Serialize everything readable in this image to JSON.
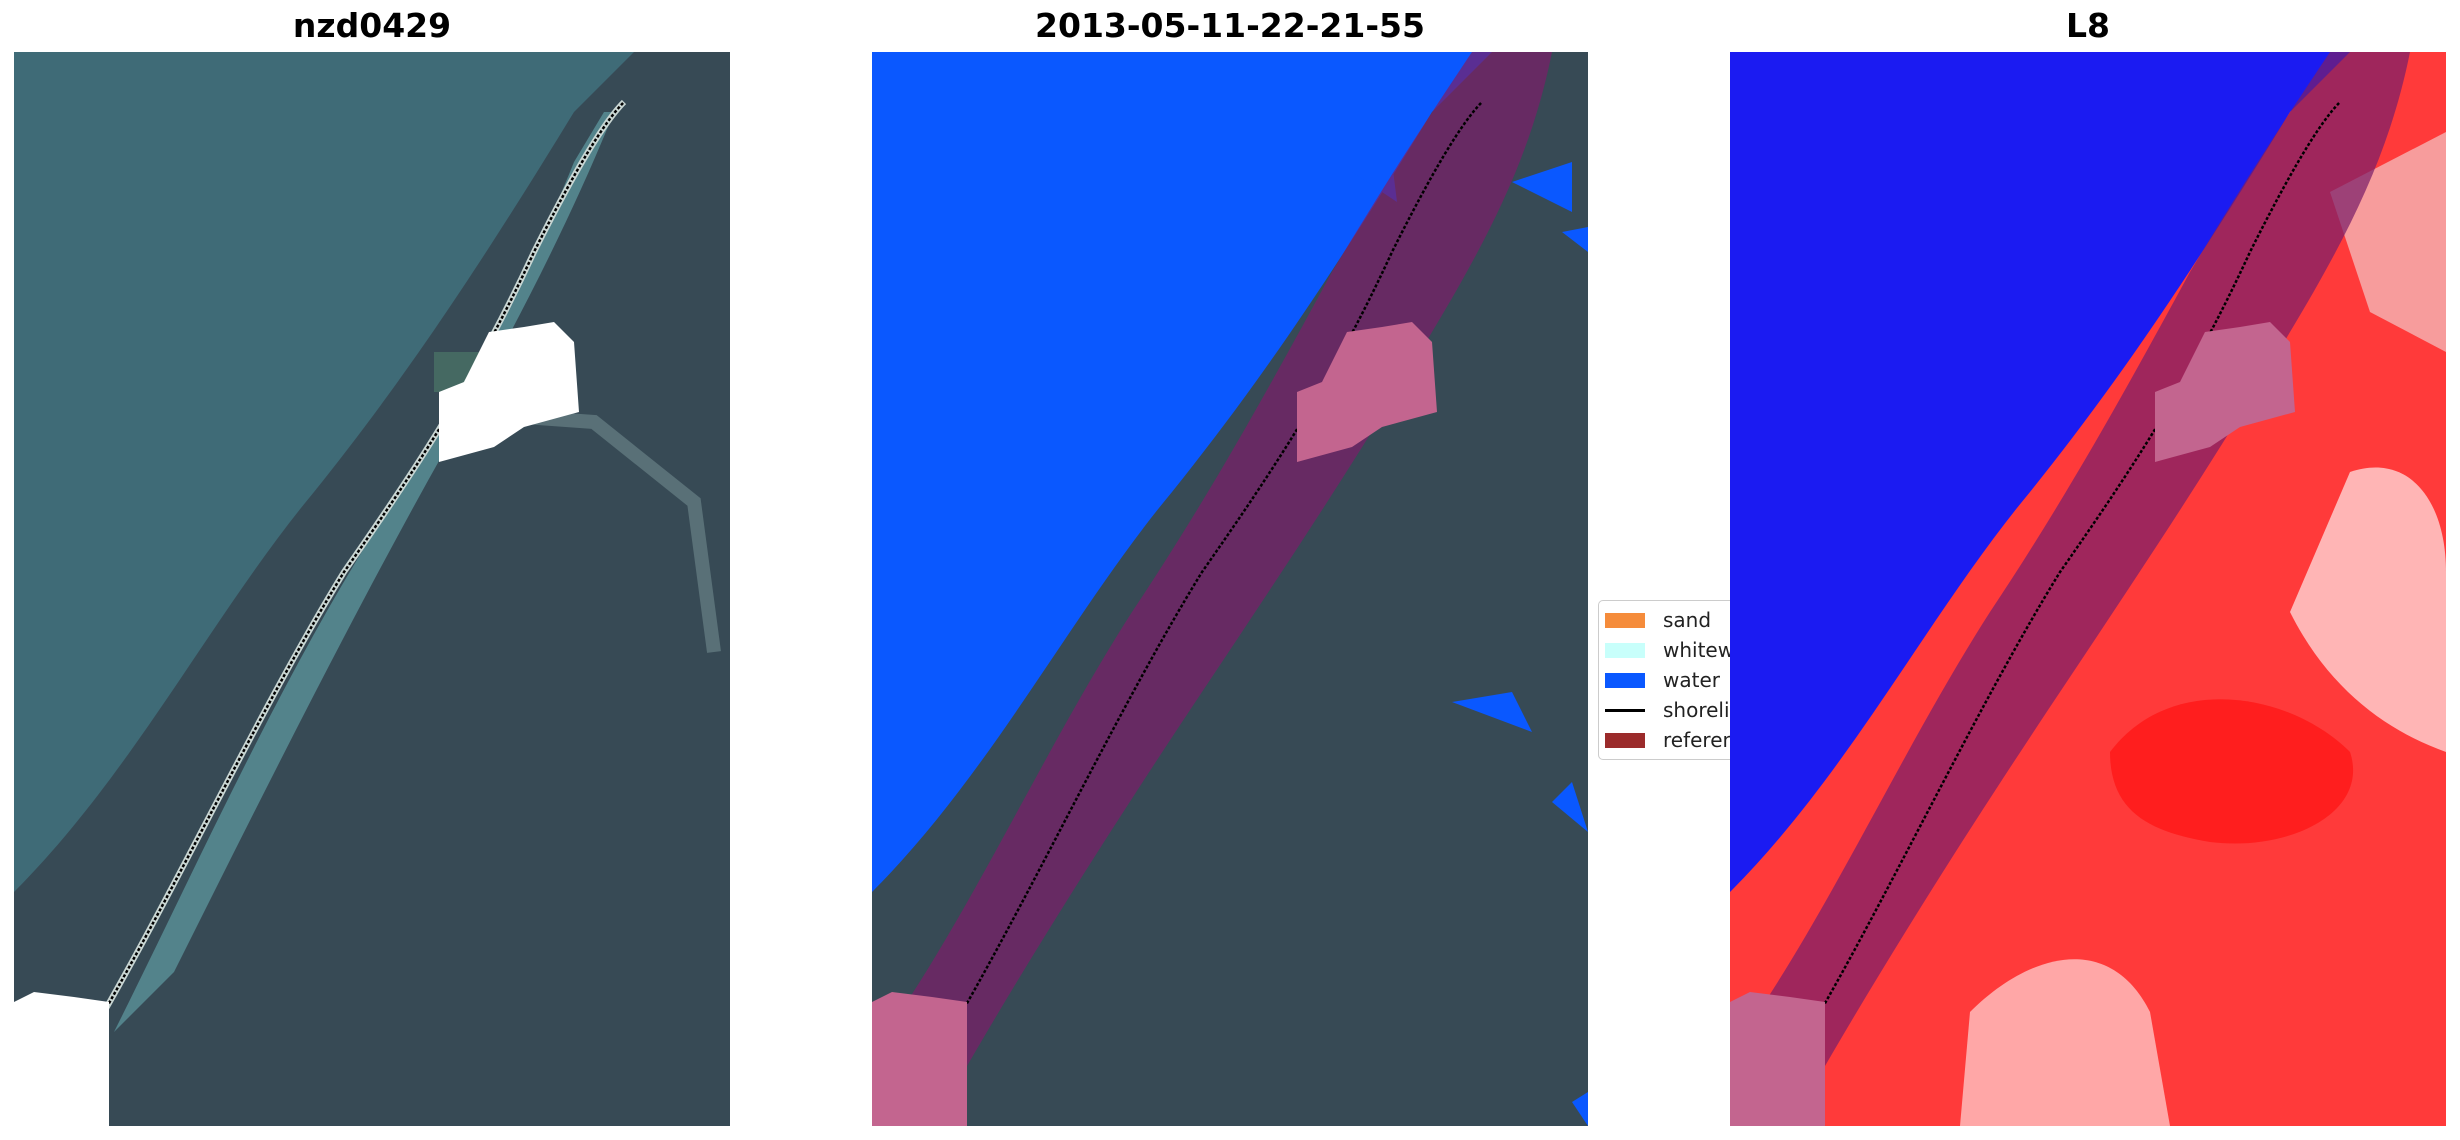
{
  "panels": [
    {
      "title": "nzd0429"
    },
    {
      "title": "2013-05-11-22-21-55"
    },
    {
      "title": "L8"
    }
  ],
  "legend": {
    "items": [
      {
        "label": "sand",
        "color": "#f58c3b",
        "kind": "patch"
      },
      {
        "label": "whitewater",
        "color": "#c8fffb",
        "kind": "patch"
      },
      {
        "label": "water",
        "color": "#0a58ff",
        "kind": "patch"
      },
      {
        "label": "shoreline",
        "color": "#000000",
        "kind": "line"
      },
      {
        "label": "reference shoreline buffer",
        "color": "#9b2b2b",
        "kind": "patch"
      }
    ]
  },
  "colors": {
    "sea": "#3f6d7a",
    "nearshore": "#5e9aa3",
    "land": "#384e58",
    "classified_water": "#0a58ff",
    "index_water": "#1b1bf2",
    "index_land": "#ff2a2a",
    "buffer": "#7a1f6a",
    "cloud_mask_overlay": "#c3658f"
  }
}
